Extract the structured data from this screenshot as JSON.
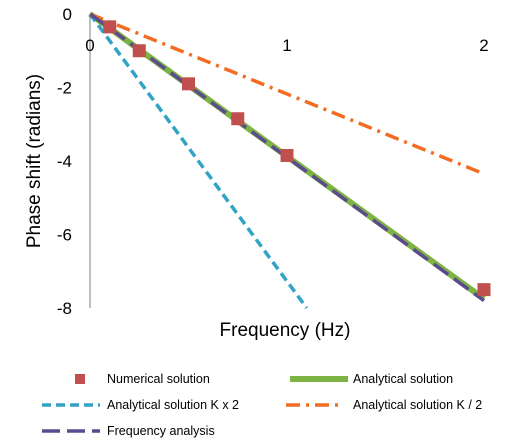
{
  "chart_data": {
    "type": "line",
    "title": "",
    "xlabel": "Frequency (Hz)",
    "ylabel": "Phase shift (radians)",
    "xlim": [
      0,
      2
    ],
    "ylim": [
      -8,
      0
    ],
    "x_ticks": [
      "0",
      "1",
      "2"
    ],
    "y_ticks": [
      "0",
      "-2",
      "-4",
      "-6",
      "-8"
    ],
    "grid": false,
    "legend_position": "bottom",
    "series": [
      {
        "name": "Numerical solution",
        "kind": "markers",
        "color": "#C0504D",
        "x": [
          0.1,
          0.25,
          0.5,
          0.75,
          1.0,
          2.0
        ],
        "y": [
          -0.35,
          -1.0,
          -1.9,
          -2.85,
          -3.85,
          -7.5
        ]
      },
      {
        "name": "Analytical solution",
        "kind": "solid",
        "color": "#7DB343",
        "x": [
          0,
          2
        ],
        "y": [
          0,
          -7.75
        ]
      },
      {
        "name": "Analytical solution K x 2",
        "kind": "dashed",
        "color": "#31A3C4",
        "x": [
          0,
          1.1
        ],
        "y": [
          0,
          -8.0
        ]
      },
      {
        "name": "Analytical solution K / 2",
        "kind": "dash-dot",
        "color": "#F26C22",
        "x": [
          0,
          2
        ],
        "y": [
          0,
          -4.35
        ]
      },
      {
        "name": "Frequency analysis",
        "kind": "long-dash",
        "color": "#5B4B8C",
        "x": [
          0,
          2
        ],
        "y": [
          0,
          -7.8
        ]
      }
    ]
  }
}
